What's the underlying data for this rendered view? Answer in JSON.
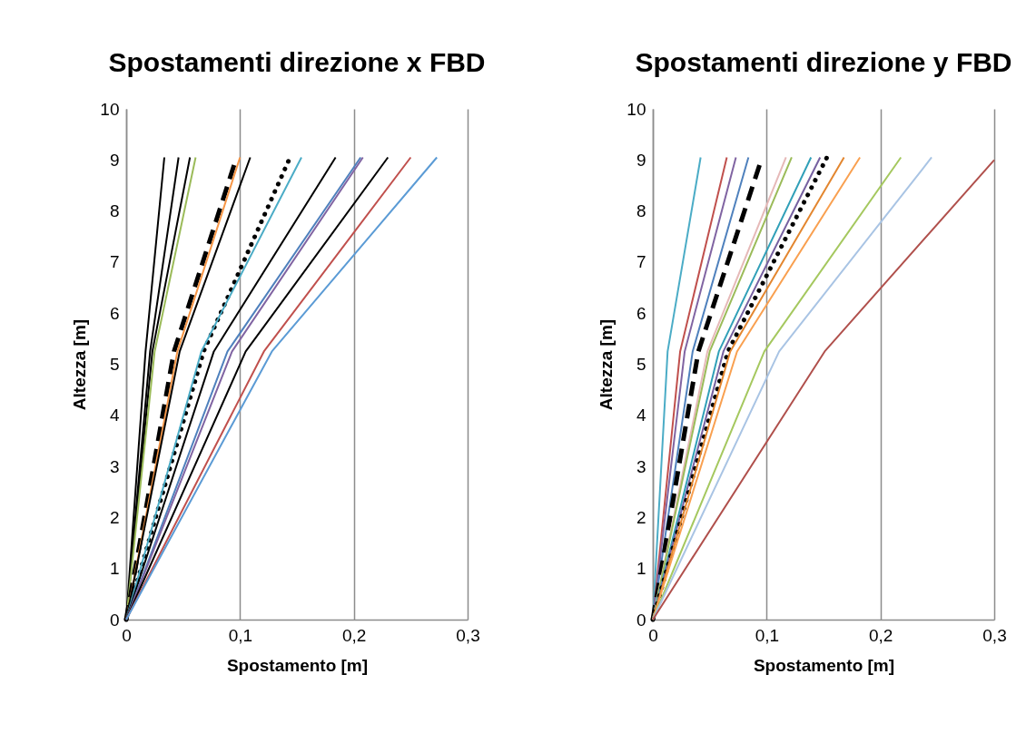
{
  "chart_data": [
    {
      "type": "line",
      "title": "Spostamenti direzione x FBD",
      "xlabel": "Spostamento [m]",
      "ylabel": "Altezza [m]",
      "xlim": [
        0,
        0.3
      ],
      "xticks": [
        0,
        {
          "value": 0.1,
          "label": "0,1"
        },
        {
          "value": 0.2,
          "label": "0,2"
        },
        {
          "value": 0.3,
          "label": "0,3"
        }
      ],
      "ylim": [
        0,
        10
      ],
      "yticks": [
        0,
        1,
        2,
        3,
        4,
        5,
        6,
        7,
        8,
        9,
        10
      ],
      "grid": "x",
      "marker": "none",
      "series": [
        {
          "color": "#000000",
          "x": [
            0,
            0.017,
            0.0335
          ],
          "values": [
            0,
            5.25,
            9.05
          ]
        },
        {
          "color": "#000000",
          "x": [
            0,
            0.021,
            0.046
          ],
          "values": [
            0,
            5.25,
            9.05
          ]
        },
        {
          "color": "#000000",
          "x": [
            0,
            0.023,
            0.056
          ],
          "values": [
            0,
            5.25,
            9.05
          ]
        },
        {
          "color": "#9bbb59",
          "x": [
            0,
            0.025,
            0.061
          ],
          "values": [
            0,
            5.25,
            9.05
          ]
        },
        {
          "color": "#000000",
          "line_style": "dashed",
          "x": [
            0,
            0.042,
            0.097
          ],
          "values": [
            0,
            5.25,
            9.05
          ]
        },
        {
          "color": "#f79646",
          "x": [
            0,
            0.045,
            0.1
          ],
          "values": [
            0,
            5.25,
            9.05
          ]
        },
        {
          "color": "#000000",
          "x": [
            0,
            0.047,
            0.109
          ],
          "values": [
            0,
            5.25,
            9.05
          ]
        },
        {
          "color": "#000000",
          "line_style": "dotted",
          "x": [
            0,
            0.068,
            0.144
          ],
          "values": [
            0,
            5.25,
            9.05
          ]
        },
        {
          "color": "#4bacc6",
          "x": [
            0,
            0.066,
            0.154
          ],
          "values": [
            0,
            5.25,
            9.05
          ]
        },
        {
          "color": "#000000",
          "x": [
            0,
            0.077,
            0.184
          ],
          "values": [
            0,
            5.25,
            9.05
          ]
        },
        {
          "color": "#4f81bd",
          "x": [
            0,
            0.089,
            0.206
          ],
          "values": [
            0,
            5.25,
            9.05
          ]
        },
        {
          "color": "#8064a2",
          "x": [
            0,
            0.093,
            0.208
          ],
          "values": [
            0,
            5.25,
            9.05
          ]
        },
        {
          "color": "#000000",
          "x": [
            0,
            0.105,
            0.23
          ],
          "values": [
            0,
            5.25,
            9.05
          ]
        },
        {
          "color": "#c0504d",
          "x": [
            0,
            0.121,
            0.25
          ],
          "values": [
            0,
            5.25,
            9.05
          ]
        },
        {
          "color": "#5b9bd5",
          "x": [
            0,
            0.128,
            0.273
          ],
          "values": [
            0,
            5.25,
            9.05
          ]
        }
      ]
    },
    {
      "type": "line",
      "title": "Spostamenti direzione y FBD",
      "xlabel": "Spostamento [m]",
      "ylabel": "Altezza [m]",
      "xlim": [
        0,
        0.3
      ],
      "xticks": [
        0,
        {
          "value": 0.1,
          "label": "0,1"
        },
        {
          "value": 0.2,
          "label": "0,2"
        },
        {
          "value": 0.3,
          "label": "0,3"
        }
      ],
      "ylim": [
        0,
        10
      ],
      "yticks": [
        0,
        1,
        2,
        3,
        4,
        5,
        6,
        7,
        8,
        9,
        10
      ],
      "grid": "x",
      "marker": "none",
      "series": [
        {
          "color": "#4bacc6",
          "x": [
            0,
            0.013,
            0.042
          ],
          "values": [
            0,
            5.25,
            9.05
          ]
        },
        {
          "color": "#c0504d",
          "x": [
            0,
            0.024,
            0.065
          ],
          "values": [
            0,
            5.25,
            9.05
          ]
        },
        {
          "color": "#8064a2",
          "x": [
            0,
            0.028,
            0.073
          ],
          "values": [
            0,
            5.25,
            9.05
          ]
        },
        {
          "color": "#4f81bd",
          "x": [
            0,
            0.035,
            0.084
          ],
          "values": [
            0,
            5.25,
            9.05
          ]
        },
        {
          "color": "#000000",
          "line_style": "dashed",
          "x": [
            0,
            0.04,
            0.096
          ],
          "values": [
            0,
            5.25,
            9.05
          ]
        },
        {
          "color": "#e6b9b8",
          "x": [
            0,
            0.048,
            0.117
          ],
          "values": [
            0,
            5.25,
            9.05
          ]
        },
        {
          "color": "#9bbb59",
          "x": [
            0,
            0.05,
            0.122
          ],
          "values": [
            0,
            5.25,
            9.05
          ]
        },
        {
          "color": "#31a0b8",
          "x": [
            0,
            0.058,
            0.139
          ],
          "values": [
            0,
            5.25,
            9.05
          ]
        },
        {
          "color": "#7560a0",
          "x": [
            0,
            0.062,
            0.147
          ],
          "values": [
            0,
            5.25,
            9.05
          ]
        },
        {
          "color": "#000000",
          "line_style": "dotted",
          "x": [
            0,
            0.066,
            0.153
          ],
          "values": [
            0,
            5.25,
            9.05
          ]
        },
        {
          "color": "#e3862f",
          "x": [
            0,
            0.068,
            0.168
          ],
          "values": [
            0,
            5.25,
            9.05
          ]
        },
        {
          "color": "#f9a050",
          "x": [
            0,
            0.074,
            0.182
          ],
          "values": [
            0,
            5.25,
            9.05
          ]
        },
        {
          "color": "#a5c85f",
          "x": [
            0,
            0.098,
            0.218
          ],
          "values": [
            0,
            5.25,
            9.05
          ]
        },
        {
          "color": "#a9c4e4",
          "x": [
            0,
            0.111,
            0.245
          ],
          "values": [
            0,
            5.25,
            9.05
          ]
        },
        {
          "color": "#b0504c",
          "x": [
            0,
            0.151,
            0.3
          ],
          "values": [
            0,
            5.25,
            9.0
          ]
        }
      ]
    }
  ]
}
